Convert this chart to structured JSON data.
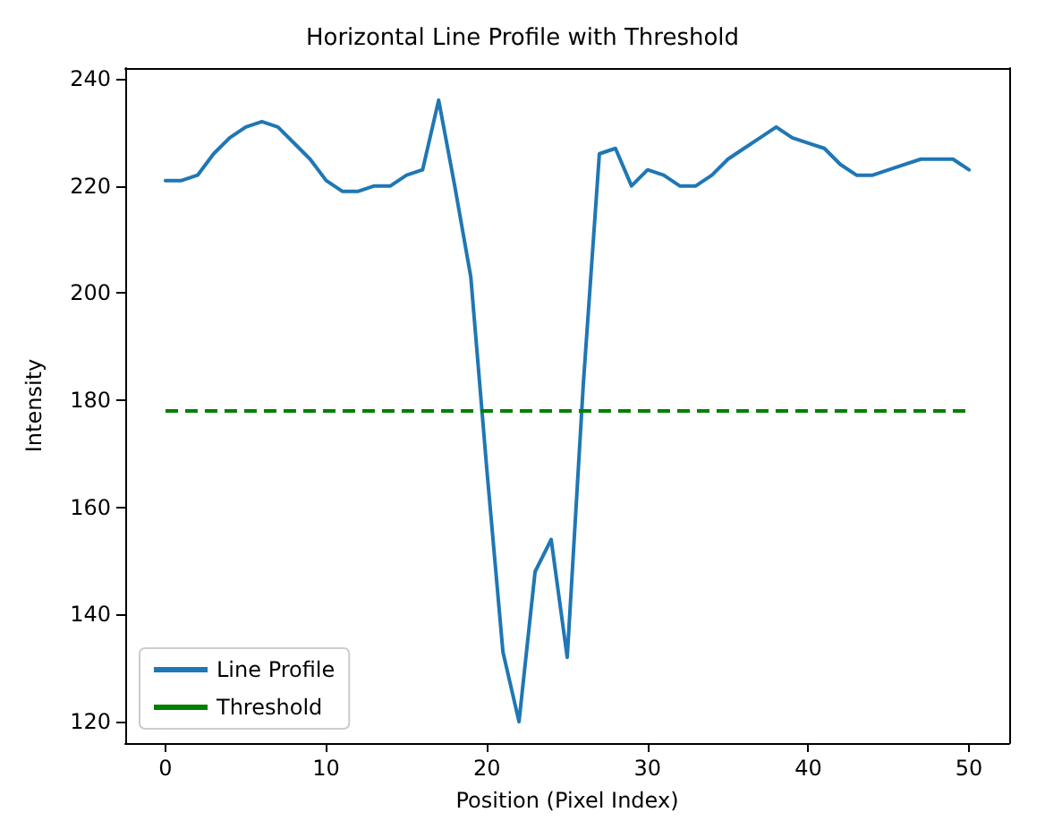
{
  "chart_data": {
    "type": "line",
    "title": "Horizontal Line Profile with Threshold",
    "xlabel": "Position (Pixel Index)",
    "ylabel": "Intensity",
    "x": [
      0,
      1,
      2,
      3,
      4,
      5,
      6,
      7,
      8,
      9,
      10,
      11,
      12,
      13,
      14,
      15,
      16,
      17,
      18,
      19,
      20,
      21,
      22,
      23,
      24,
      25,
      26,
      27,
      28,
      29,
      30,
      31,
      32,
      33,
      34,
      35,
      36,
      37,
      38,
      39,
      40,
      41,
      42,
      43,
      44,
      45,
      46,
      47,
      48,
      49,
      50
    ],
    "series": [
      {
        "name": "Line Profile",
        "color": "#1f77b4",
        "values": [
          221,
          221,
          222,
          226,
          229,
          231,
          232,
          231,
          228,
          225,
          221,
          219,
          219,
          220,
          220,
          222,
          223,
          236,
          220,
          203,
          167,
          133,
          120,
          148,
          154,
          132,
          183,
          226,
          227,
          220,
          223,
          222,
          220,
          220,
          222,
          225,
          227,
          229,
          231,
          229,
          228,
          227,
          224,
          222,
          222,
          223,
          224,
          225,
          225,
          225,
          223
        ]
      }
    ],
    "ref_lines": [
      {
        "axis": "y",
        "value": 178,
        "label": "Threshold",
        "color": "#008000",
        "line_style": "dashed"
      }
    ],
    "xlim": [
      -2.5,
      52.5
    ],
    "xticks": [
      0,
      10,
      20,
      30,
      40,
      50
    ],
    "ylim": [
      116,
      242
    ],
    "yticks": [
      120,
      140,
      160,
      180,
      200,
      220,
      240
    ],
    "grid": false,
    "legend": "bottom left",
    "marker": "none",
    "line_style": "solid"
  }
}
